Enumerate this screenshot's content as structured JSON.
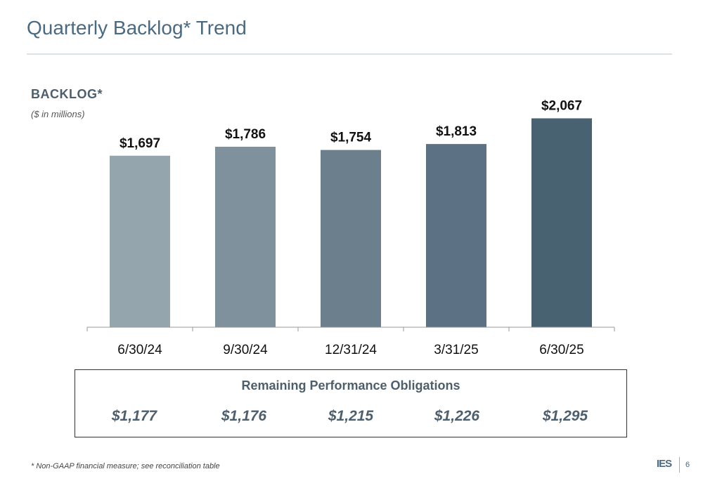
{
  "title": "Quarterly Backlog* Trend",
  "chart_data": {
    "type": "bar",
    "title": "BACKLOG*",
    "subtitle": "($ in millions)",
    "categories": [
      "6/30/24",
      "9/30/24",
      "12/31/24",
      "3/31/25",
      "6/30/25"
    ],
    "values": [
      1697,
      1786,
      1754,
      1813,
      2067
    ],
    "value_labels": [
      "$1,697",
      "$1,786",
      "$1,754",
      "$1,813",
      "$2,067"
    ],
    "bar_colors": [
      "#94a5ae",
      "#7e919d",
      "#6b7f8d",
      "#5c7183",
      "#486272"
    ],
    "ylim": [
      0,
      2300
    ],
    "grid": false,
    "legend": "none"
  },
  "rpo": {
    "title": "Remaining Performance Obligations",
    "values": [
      "$1,177",
      "$1,176",
      "$1,215",
      "$1,226",
      "$1,295"
    ]
  },
  "footnote": "* Non-GAAP financial measure; see reconciliation table",
  "logo": "IES",
  "page_number": "6"
}
